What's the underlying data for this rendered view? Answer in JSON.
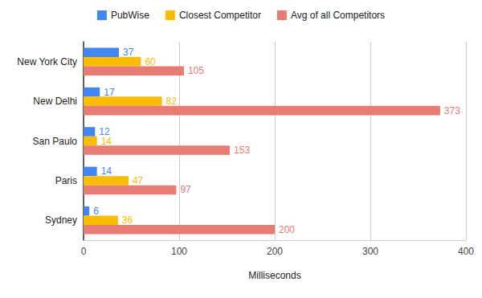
{
  "chart_data": {
    "type": "bar",
    "orientation": "horizontal",
    "x_label": "Milliseconds",
    "categories": [
      "New York City",
      "New Delhi",
      "San Paulo",
      "Paris",
      "Sydney"
    ],
    "series": [
      {
        "name": "PubWise",
        "color": "#4285f4",
        "values": [
          37,
          17,
          12,
          14,
          6
        ]
      },
      {
        "name": "Closest Competitor",
        "color": "#fbbc04",
        "values": [
          60,
          82,
          14,
          47,
          36
        ]
      },
      {
        "name": "Avg of all Competitors",
        "color": "#e67c73",
        "values": [
          105,
          373,
          153,
          97,
          200
        ]
      }
    ],
    "xlim": [
      0,
      400
    ],
    "xticks": [
      0,
      100,
      200,
      300,
      400
    ],
    "grid": true,
    "legend": "top",
    "data_labels": true
  }
}
